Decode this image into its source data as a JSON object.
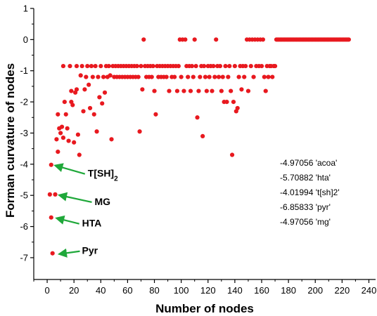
{
  "chart_data": {
    "type": "scatter",
    "title": "",
    "xlabel": "Number of nodes",
    "ylabel": "Forman curvature of nodes",
    "xlim": [
      -10,
      245
    ],
    "ylim": [
      -7.7,
      1
    ],
    "xticks": [
      "0",
      "20",
      "40",
      "60",
      "80",
      "100",
      "120",
      "140",
      "160",
      "180",
      "200",
      "220",
      "240"
    ],
    "yticks": [
      "1",
      "0",
      "-1",
      "-2",
      "-3",
      "-4",
      "-5",
      "-6",
      "-7"
    ],
    "marker_color": "#e8191f",
    "annotation_color": "#1fa83a",
    "annotations": [
      {
        "label": "T[SH]",
        "sub": "2",
        "x": 3,
        "y": -4.02
      },
      {
        "label": "MG",
        "x": 6,
        "y": -4.97
      },
      {
        "label": "HTA",
        "x": 4,
        "y": -5.71
      },
      {
        "label": "Pyr",
        "x": 6,
        "y": -6.86
      }
    ],
    "side_notes": [
      "-4.97056 'acoa'",
      "-5.70882 'hta'",
      "-4.01994 't[sh]2'",
      "-6.85833 'pyr'",
      "-4.97056 'mg'"
    ],
    "points": [
      [
        2,
        -4.97
      ],
      [
        3,
        -4.02
      ],
      [
        3,
        -5.71
      ],
      [
        4,
        -6.86
      ],
      [
        6,
        -4.97
      ],
      [
        7,
        -3.2
      ],
      [
        8,
        -2.4
      ],
      [
        8,
        -3.6
      ],
      [
        9,
        -2.85
      ],
      [
        10,
        -3.0
      ],
      [
        11,
        -2.8
      ],
      [
        12,
        -0.85
      ],
      [
        12,
        -3.15
      ],
      [
        13,
        -2.0
      ],
      [
        14,
        -2.4
      ],
      [
        15,
        -2.85
      ],
      [
        16,
        -3.25
      ],
      [
        17,
        -0.85
      ],
      [
        18,
        -1.65
      ],
      [
        18,
        -2.0
      ],
      [
        19,
        -2.1
      ],
      [
        20,
        -3.3
      ],
      [
        21,
        -1.7
      ],
      [
        22,
        -0.85
      ],
      [
        22,
        -1.6
      ],
      [
        23,
        -3.05
      ],
      [
        24,
        -3.7
      ],
      [
        25,
        -1.15
      ],
      [
        26,
        -0.85
      ],
      [
        27,
        -2.3
      ],
      [
        28,
        -1.6
      ],
      [
        29,
        -1.2
      ],
      [
        30,
        -0.85
      ],
      [
        31,
        -1.45
      ],
      [
        32,
        -2.2
      ],
      [
        33,
        -0.85
      ],
      [
        34,
        -1.2
      ],
      [
        35,
        -2.4
      ],
      [
        36,
        -0.85
      ],
      [
        37,
        -2.95
      ],
      [
        38,
        -1.2
      ],
      [
        39,
        -1.85
      ],
      [
        40,
        -0.85
      ],
      [
        41,
        -2.05
      ],
      [
        42,
        -1.2
      ],
      [
        43,
        -1.7
      ],
      [
        44,
        -0.85
      ],
      [
        45,
        -1.2
      ],
      [
        46,
        -0.85
      ],
      [
        47,
        -1.15
      ],
      [
        48,
        -3.2
      ],
      [
        49,
        -0.85
      ],
      [
        50,
        -1.2
      ],
      [
        51,
        -0.85
      ],
      [
        52,
        -1.2
      ],
      [
        53,
        -0.85
      ],
      [
        54,
        -1.2
      ],
      [
        55,
        -0.85
      ],
      [
        56,
        -1.2
      ],
      [
        57,
        -0.85
      ],
      [
        58,
        -1.2
      ],
      [
        59,
        -0.85
      ],
      [
        60,
        -1.2
      ],
      [
        61,
        -0.85
      ],
      [
        62,
        -1.2
      ],
      [
        63,
        -0.85
      ],
      [
        64,
        -1.2
      ],
      [
        65,
        -0.85
      ],
      [
        66,
        -1.2
      ],
      [
        67,
        -0.85
      ],
      [
        68,
        -1.2
      ],
      [
        69,
        -2.95
      ],
      [
        70,
        -0.85
      ],
      [
        71,
        -1.6
      ],
      [
        72,
        0
      ],
      [
        73,
        -0.85
      ],
      [
        74,
        -1.2
      ],
      [
        75,
        -0.85
      ],
      [
        76,
        -1.2
      ],
      [
        77,
        -0.85
      ],
      [
        78,
        -1.2
      ],
      [
        79,
        -0.85
      ],
      [
        80,
        -1.65
      ],
      [
        81,
        -2.4
      ],
      [
        82,
        -0.85
      ],
      [
        83,
        -1.2
      ],
      [
        84,
        -0.85
      ],
      [
        85,
        -1.2
      ],
      [
        86,
        -0.85
      ],
      [
        87,
        -1.2
      ],
      [
        88,
        -0.85
      ],
      [
        89,
        -1.2
      ],
      [
        90,
        -0.85
      ],
      [
        91,
        -1.65
      ],
      [
        92,
        -0.85
      ],
      [
        93,
        -1.2
      ],
      [
        94,
        -0.85
      ],
      [
        95,
        -1.2
      ],
      [
        96,
        -0.85
      ],
      [
        97,
        -1.65
      ],
      [
        98,
        -0.85
      ],
      [
        99,
        0
      ],
      [
        100,
        -1.2
      ],
      [
        101,
        0
      ],
      [
        102,
        -1.65
      ],
      [
        103,
        0
      ],
      [
        104,
        -0.85
      ],
      [
        105,
        -1.2
      ],
      [
        106,
        -0.85
      ],
      [
        107,
        -1.65
      ],
      [
        108,
        -0.85
      ],
      [
        109,
        -1.2
      ],
      [
        110,
        0
      ],
      [
        111,
        -0.85
      ],
      [
        112,
        -2.5
      ],
      [
        113,
        -1.65
      ],
      [
        114,
        -1.2
      ],
      [
        115,
        -0.85
      ],
      [
        116,
        -3.1
      ],
      [
        117,
        -0.85
      ],
      [
        118,
        -1.2
      ],
      [
        119,
        -1.65
      ],
      [
        120,
        -0.85
      ],
      [
        121,
        -1.2
      ],
      [
        122,
        -0.85
      ],
      [
        123,
        -1.65
      ],
      [
        124,
        -0.85
      ],
      [
        125,
        -1.2
      ],
      [
        126,
        0
      ],
      [
        127,
        -0.85
      ],
      [
        128,
        -1.2
      ],
      [
        129,
        -0.85
      ],
      [
        130,
        -1.65
      ],
      [
        131,
        -1.2
      ],
      [
        132,
        -2.0
      ],
      [
        133,
        -0.85
      ],
      [
        134,
        -2.0
      ],
      [
        135,
        -1.2
      ],
      [
        136,
        -0.85
      ],
      [
        137,
        -1.65
      ],
      [
        138,
        -3.7
      ],
      [
        139,
        -2.0
      ],
      [
        140,
        -0.85
      ],
      [
        141,
        -2.3
      ],
      [
        142,
        -2.2
      ],
      [
        143,
        -1.2
      ],
      [
        144,
        -0.85
      ],
      [
        145,
        -1.6
      ],
      [
        146,
        -0.85
      ],
      [
        147,
        -1.2
      ],
      [
        148,
        -0.85
      ],
      [
        149,
        0
      ],
      [
        150,
        -1.65
      ],
      [
        151,
        0
      ],
      [
        152,
        -0.85
      ],
      [
        153,
        0
      ],
      [
        154,
        -1.2
      ],
      [
        155,
        0
      ],
      [
        156,
        -0.85
      ],
      [
        157,
        0
      ],
      [
        158,
        -0.85
      ],
      [
        159,
        0
      ],
      [
        160,
        -0.85
      ],
      [
        161,
        0
      ],
      [
        162,
        -1.2
      ],
      [
        163,
        -1.65
      ],
      [
        164,
        -0.85
      ],
      [
        165,
        -1.2
      ],
      [
        166,
        -0.85
      ],
      [
        167,
        -0.85
      ],
      [
        168,
        -1.2
      ],
      [
        169,
        -0.85
      ],
      [
        170,
        -0.85
      ],
      [
        171,
        0
      ],
      [
        172,
        0
      ],
      [
        173,
        0
      ],
      [
        174,
        0
      ],
      [
        175,
        0
      ],
      [
        176,
        0
      ],
      [
        177,
        0
      ],
      [
        178,
        0
      ],
      [
        179,
        0
      ],
      [
        180,
        0
      ],
      [
        181,
        0
      ],
      [
        182,
        0
      ],
      [
        183,
        0
      ],
      [
        184,
        0
      ],
      [
        185,
        0
      ],
      [
        186,
        0
      ],
      [
        187,
        0
      ],
      [
        188,
        0
      ],
      [
        189,
        0
      ],
      [
        190,
        0
      ],
      [
        191,
        0
      ],
      [
        192,
        0
      ],
      [
        193,
        0
      ],
      [
        194,
        0
      ],
      [
        195,
        0
      ],
      [
        196,
        0
      ],
      [
        197,
        0
      ],
      [
        198,
        0
      ],
      [
        199,
        0
      ],
      [
        200,
        0
      ],
      [
        201,
        0
      ],
      [
        202,
        0
      ],
      [
        203,
        0
      ],
      [
        204,
        0
      ],
      [
        205,
        0
      ],
      [
        206,
        0
      ],
      [
        207,
        0
      ],
      [
        208,
        0
      ],
      [
        209,
        0
      ],
      [
        210,
        0
      ],
      [
        211,
        0
      ],
      [
        212,
        0
      ],
      [
        213,
        0
      ],
      [
        214,
        0
      ],
      [
        215,
        0
      ],
      [
        216,
        0
      ],
      [
        217,
        0
      ],
      [
        218,
        0
      ],
      [
        219,
        0
      ],
      [
        220,
        0
      ],
      [
        221,
        0
      ],
      [
        222,
        0
      ],
      [
        223,
        0
      ],
      [
        224,
        0
      ],
      [
        225,
        0
      ]
    ]
  }
}
